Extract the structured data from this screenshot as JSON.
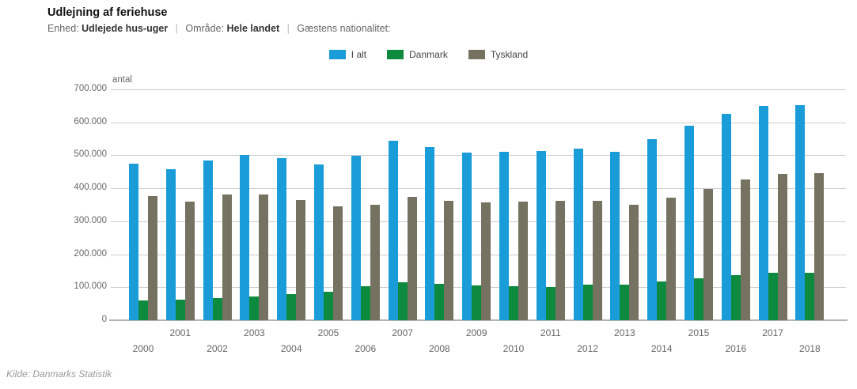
{
  "header": {
    "title": "Udlejning af feriehuse",
    "meta": [
      {
        "label": "Enhed:",
        "value": "Udlejede hus-uger"
      },
      {
        "label": "Område:",
        "value": "Hele landet"
      },
      {
        "label": "Gæstens nationalitet:",
        "value": ""
      }
    ],
    "separator": "|"
  },
  "legend": [
    {
      "label": "I alt",
      "color": "#199cd8"
    },
    {
      "label": "Danmark",
      "color": "#0e8a3e"
    },
    {
      "label": "Tyskland",
      "color": "#757261"
    }
  ],
  "chart_data": {
    "type": "bar",
    "title": "Udlejning af feriehuse",
    "subtitle": "Enhed: Udlejede hus-uger | Område: Hele landet | Gæstens nationalitet:",
    "ylabel": "antal",
    "xlabel": "",
    "categories": [
      2000,
      2001,
      2002,
      2003,
      2004,
      2005,
      2006,
      2007,
      2008,
      2009,
      2010,
      2011,
      2012,
      2013,
      2014,
      2015,
      2016,
      2017,
      2018
    ],
    "series": [
      {
        "name": "I alt",
        "color": "#199cd8",
        "values": [
          474000,
          459000,
          484000,
          500000,
          491000,
          473000,
          499000,
          544000,
          524000,
          508000,
          511000,
          514000,
          521000,
          511000,
          549000,
          589000,
          625000,
          649000,
          652000
        ]
      },
      {
        "name": "Danmark",
        "color": "#0e8a3e",
        "values": [
          60000,
          62000,
          68000,
          73000,
          80000,
          86000,
          104000,
          116000,
          110000,
          105000,
          102000,
          101000,
          108000,
          108000,
          118000,
          127000,
          136000,
          143000,
          144000
        ]
      },
      {
        "name": "Tyskland",
        "color": "#757261",
        "values": [
          376000,
          359000,
          380000,
          382000,
          365000,
          345000,
          350000,
          375000,
          363000,
          357000,
          360000,
          362000,
          361000,
          351000,
          371000,
          399000,
          427000,
          443000,
          446000
        ]
      }
    ],
    "ylim": [
      0,
      700000
    ],
    "ytick_interval": 100000,
    "ytick_labels": [
      "700.000",
      "600.000",
      "500.000",
      "400.000",
      "300.000",
      "200.000",
      "100.000",
      "0"
    ],
    "grid": true,
    "legend_position": "top",
    "x_label_rows": "alternating"
  },
  "footer": {
    "source": "Kilde: Danmarks Statistik"
  }
}
